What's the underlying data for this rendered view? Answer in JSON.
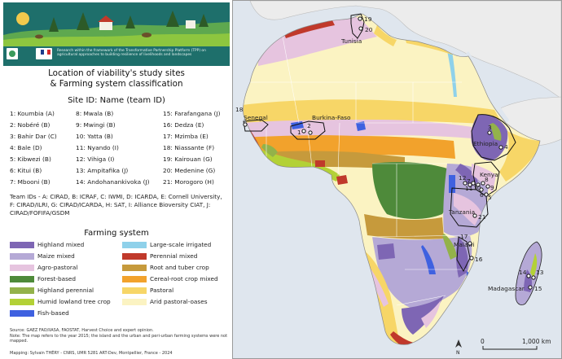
{
  "banner": {
    "caption": "Research within the framework of the Transformative Partnership Platform (TPP) on agricultural approaches to building resilience of livelihoods and landscapes"
  },
  "title": {
    "line1": "Location of viability's study sites",
    "line2": "& Farming system classification"
  },
  "sites_heading": "Site ID: Name (team ID)",
  "sites": [
    {
      "label": "1: Koumbia (A)"
    },
    {
      "label": "2: Nobéré (B)"
    },
    {
      "label": "3: Bahir Dar (C)"
    },
    {
      "label": "4: Bale (D)"
    },
    {
      "label": "5: Kibwezi (B)"
    },
    {
      "label": "6: Kitui (B)"
    },
    {
      "label": "7: Mbooni (B)"
    },
    {
      "label": "8: Mwala (B)"
    },
    {
      "label": "9: Mwingi (B)"
    },
    {
      "label": "10: Yatta (B)"
    },
    {
      "label": "11: Nyando (I)"
    },
    {
      "label": "12: Vihiga (I)"
    },
    {
      "label": "13: Ampitafika  (J)"
    },
    {
      "label": "14: Andohanankivoka  (J)"
    },
    {
      "label": "15: Farafangana (J)"
    },
    {
      "label": "16: Dedza (E)"
    },
    {
      "label": "17: Mzimba (E)"
    },
    {
      "label": "18: Niassante (F)"
    },
    {
      "label": "19: Kairouan (G)"
    },
    {
      "label": "20: Medenine (G)"
    },
    {
      "label": "21: Morogoro (H)"
    }
  ],
  "team_ids": "Team IDs - A: CIRAD, B: ICRAF, C: IWMI, D: ICARDA, E: Cornell University, F: CIRAD/ILRI, G: CIRAD/ICARDA, H: SAT, I: Alliance Bioversity CIAT, J: CIRAD/FOFIFA/GSDM",
  "farming_heading": "Farming system",
  "legend": [
    {
      "label": "Highland mixed",
      "color": "#7e66b4"
    },
    {
      "label": "Maize mixed",
      "color": "#b5a9d6"
    },
    {
      "label": "Agro-pastoral",
      "color": "#e6c4df"
    },
    {
      "label": "Forest-based",
      "color": "#4e8a3a"
    },
    {
      "label": "Highland perennial",
      "color": "#93b24a"
    },
    {
      "label": "Humid lowland tree crop",
      "color": "#b3d136"
    },
    {
      "label": "Fish-based",
      "color": "#3f61e0"
    },
    {
      "label": "Large-scale irrigated",
      "color": "#8fd1ea"
    },
    {
      "label": "Perennial mixed",
      "color": "#c0392b"
    },
    {
      "label": "Root and tuber crop",
      "color": "#c69a3c"
    },
    {
      "label": "Cereal-root crop mixed",
      "color": "#f2a22c"
    },
    {
      "label": "Pastoral",
      "color": "#f7d667"
    },
    {
      "label": "Arid pastoral-oases",
      "color": "#fbf3c2"
    }
  ],
  "source": {
    "line1": "Source: GAEZ FAO/IIASA, FAOSTAT, Harvest Choice and expert opinion.",
    "line2": "Note: The map refers to the year 2015; the island and the urban and peri-urban farming systems were not mapped.",
    "credit": "Mapping: Sylvain THÉRY - CNRS, UMR 5281 ART-Dev, Montpellier, France - 2024"
  },
  "map": {
    "countries": [
      "Tunisia",
      "Senegal",
      "Burkina-Faso",
      "Ethiopia",
      "Kenya",
      "Tanzania",
      "Malawi",
      "Madagascar"
    ],
    "site_numbers": [
      "19",
      "20",
      "18",
      "1",
      "2",
      "3",
      "4",
      "7",
      "10",
      "6",
      "8",
      "9",
      "5",
      "12",
      "11",
      "21",
      "17",
      "16",
      "14",
      "13",
      "15"
    ],
    "scale": {
      "start": "0",
      "end": "1,000 km"
    },
    "north": "N"
  }
}
